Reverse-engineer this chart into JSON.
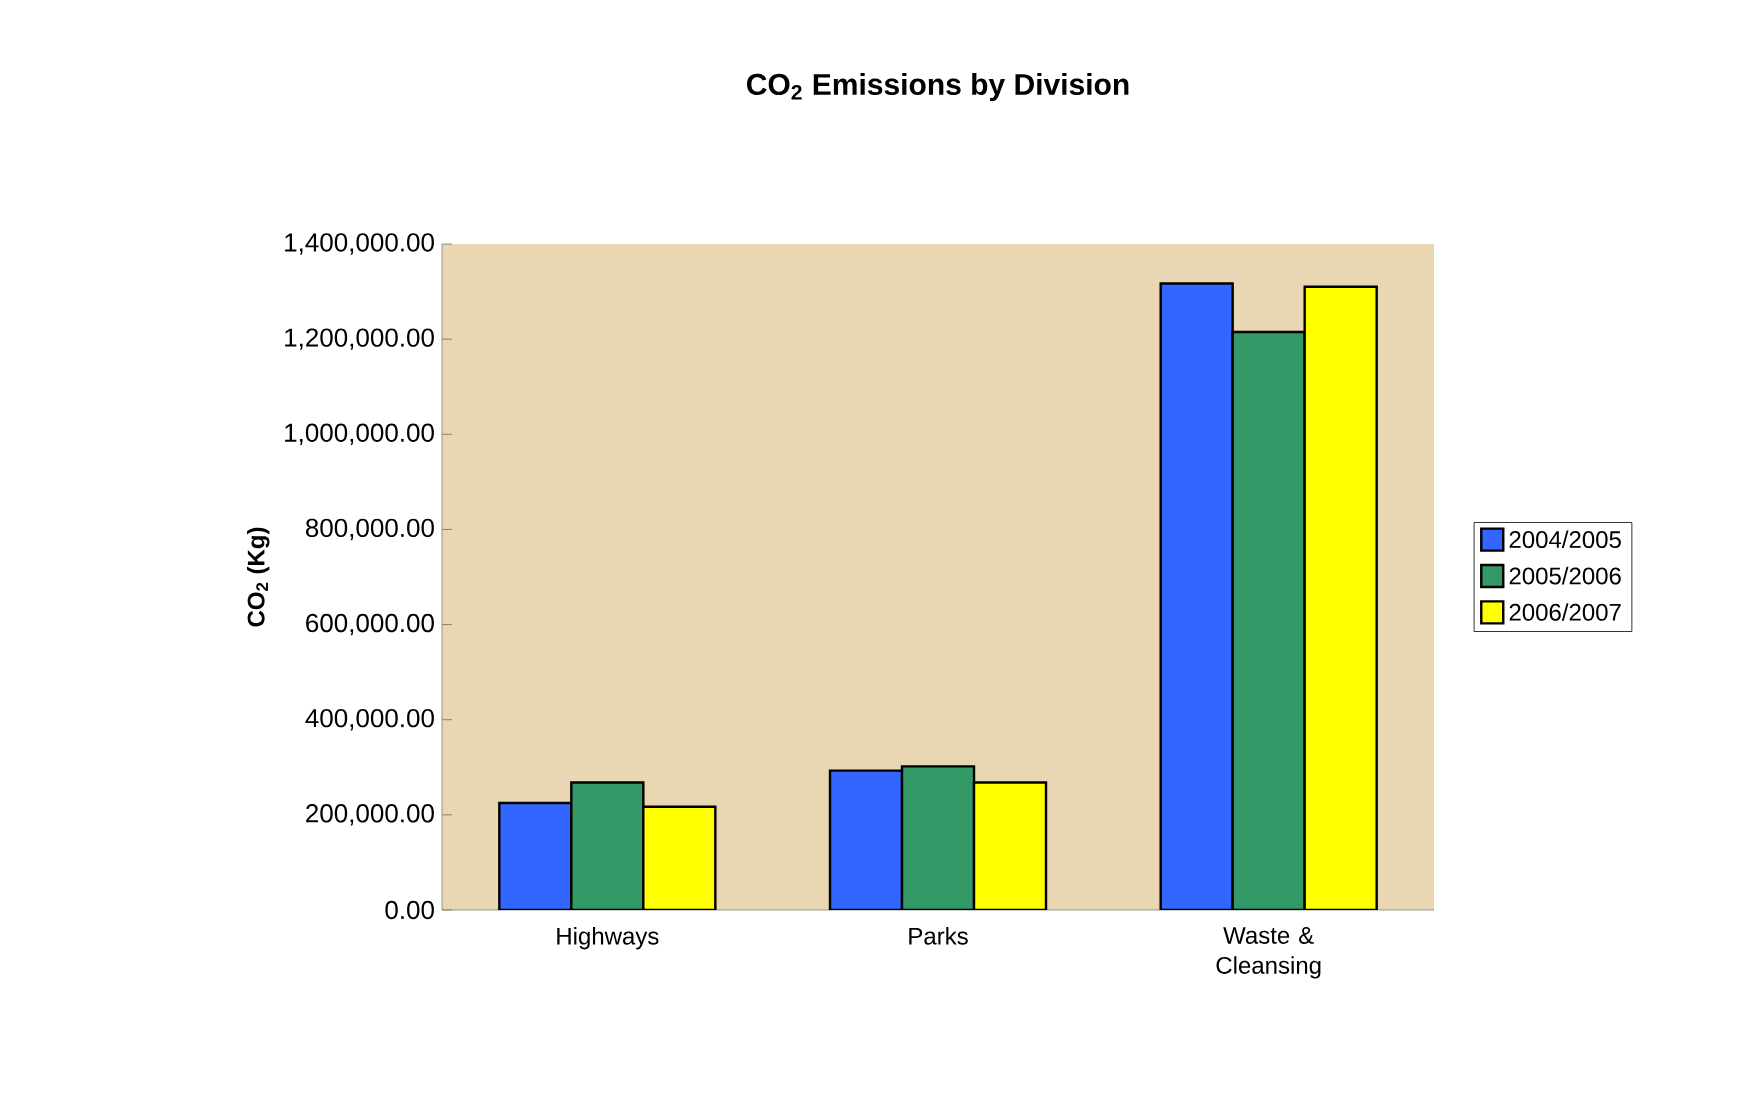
{
  "chart_data": {
    "type": "bar",
    "title": "CO$_{2}$ Emissions by Division",
    "ylabel": "CO$_{2}$ (Kg)",
    "categories": [
      "Highways",
      "Parks",
      "Waste & Cleansing"
    ],
    "series": [
      {
        "name": "2004/2005",
        "color": "#3366ff",
        "values": [
          225000,
          293000,
          1317000
        ]
      },
      {
        "name": "2005/2006",
        "color": "#339966",
        "values": [
          268000,
          302000,
          1215000
        ]
      },
      {
        "name": "2006/2007",
        "color": "#ffff00",
        "values": [
          217000,
          268000,
          1310000
        ]
      }
    ],
    "ylim": [
      0,
      1400000
    ],
    "yticks": [
      {
        "value": 0,
        "label": "0.00"
      },
      {
        "value": 200000,
        "label": "200,000.00"
      },
      {
        "value": 400000,
        "label": "400,000.00"
      },
      {
        "value": 600000,
        "label": "600,000.00"
      },
      {
        "value": 800000,
        "label": "800,000.00"
      },
      {
        "value": 1000000,
        "label": "1,000,000.00"
      },
      {
        "value": 1200000,
        "label": "1,200,000.00"
      },
      {
        "value": 1400000,
        "label": "1,400,000.00"
      }
    ],
    "grid": false,
    "legend": "right"
  }
}
